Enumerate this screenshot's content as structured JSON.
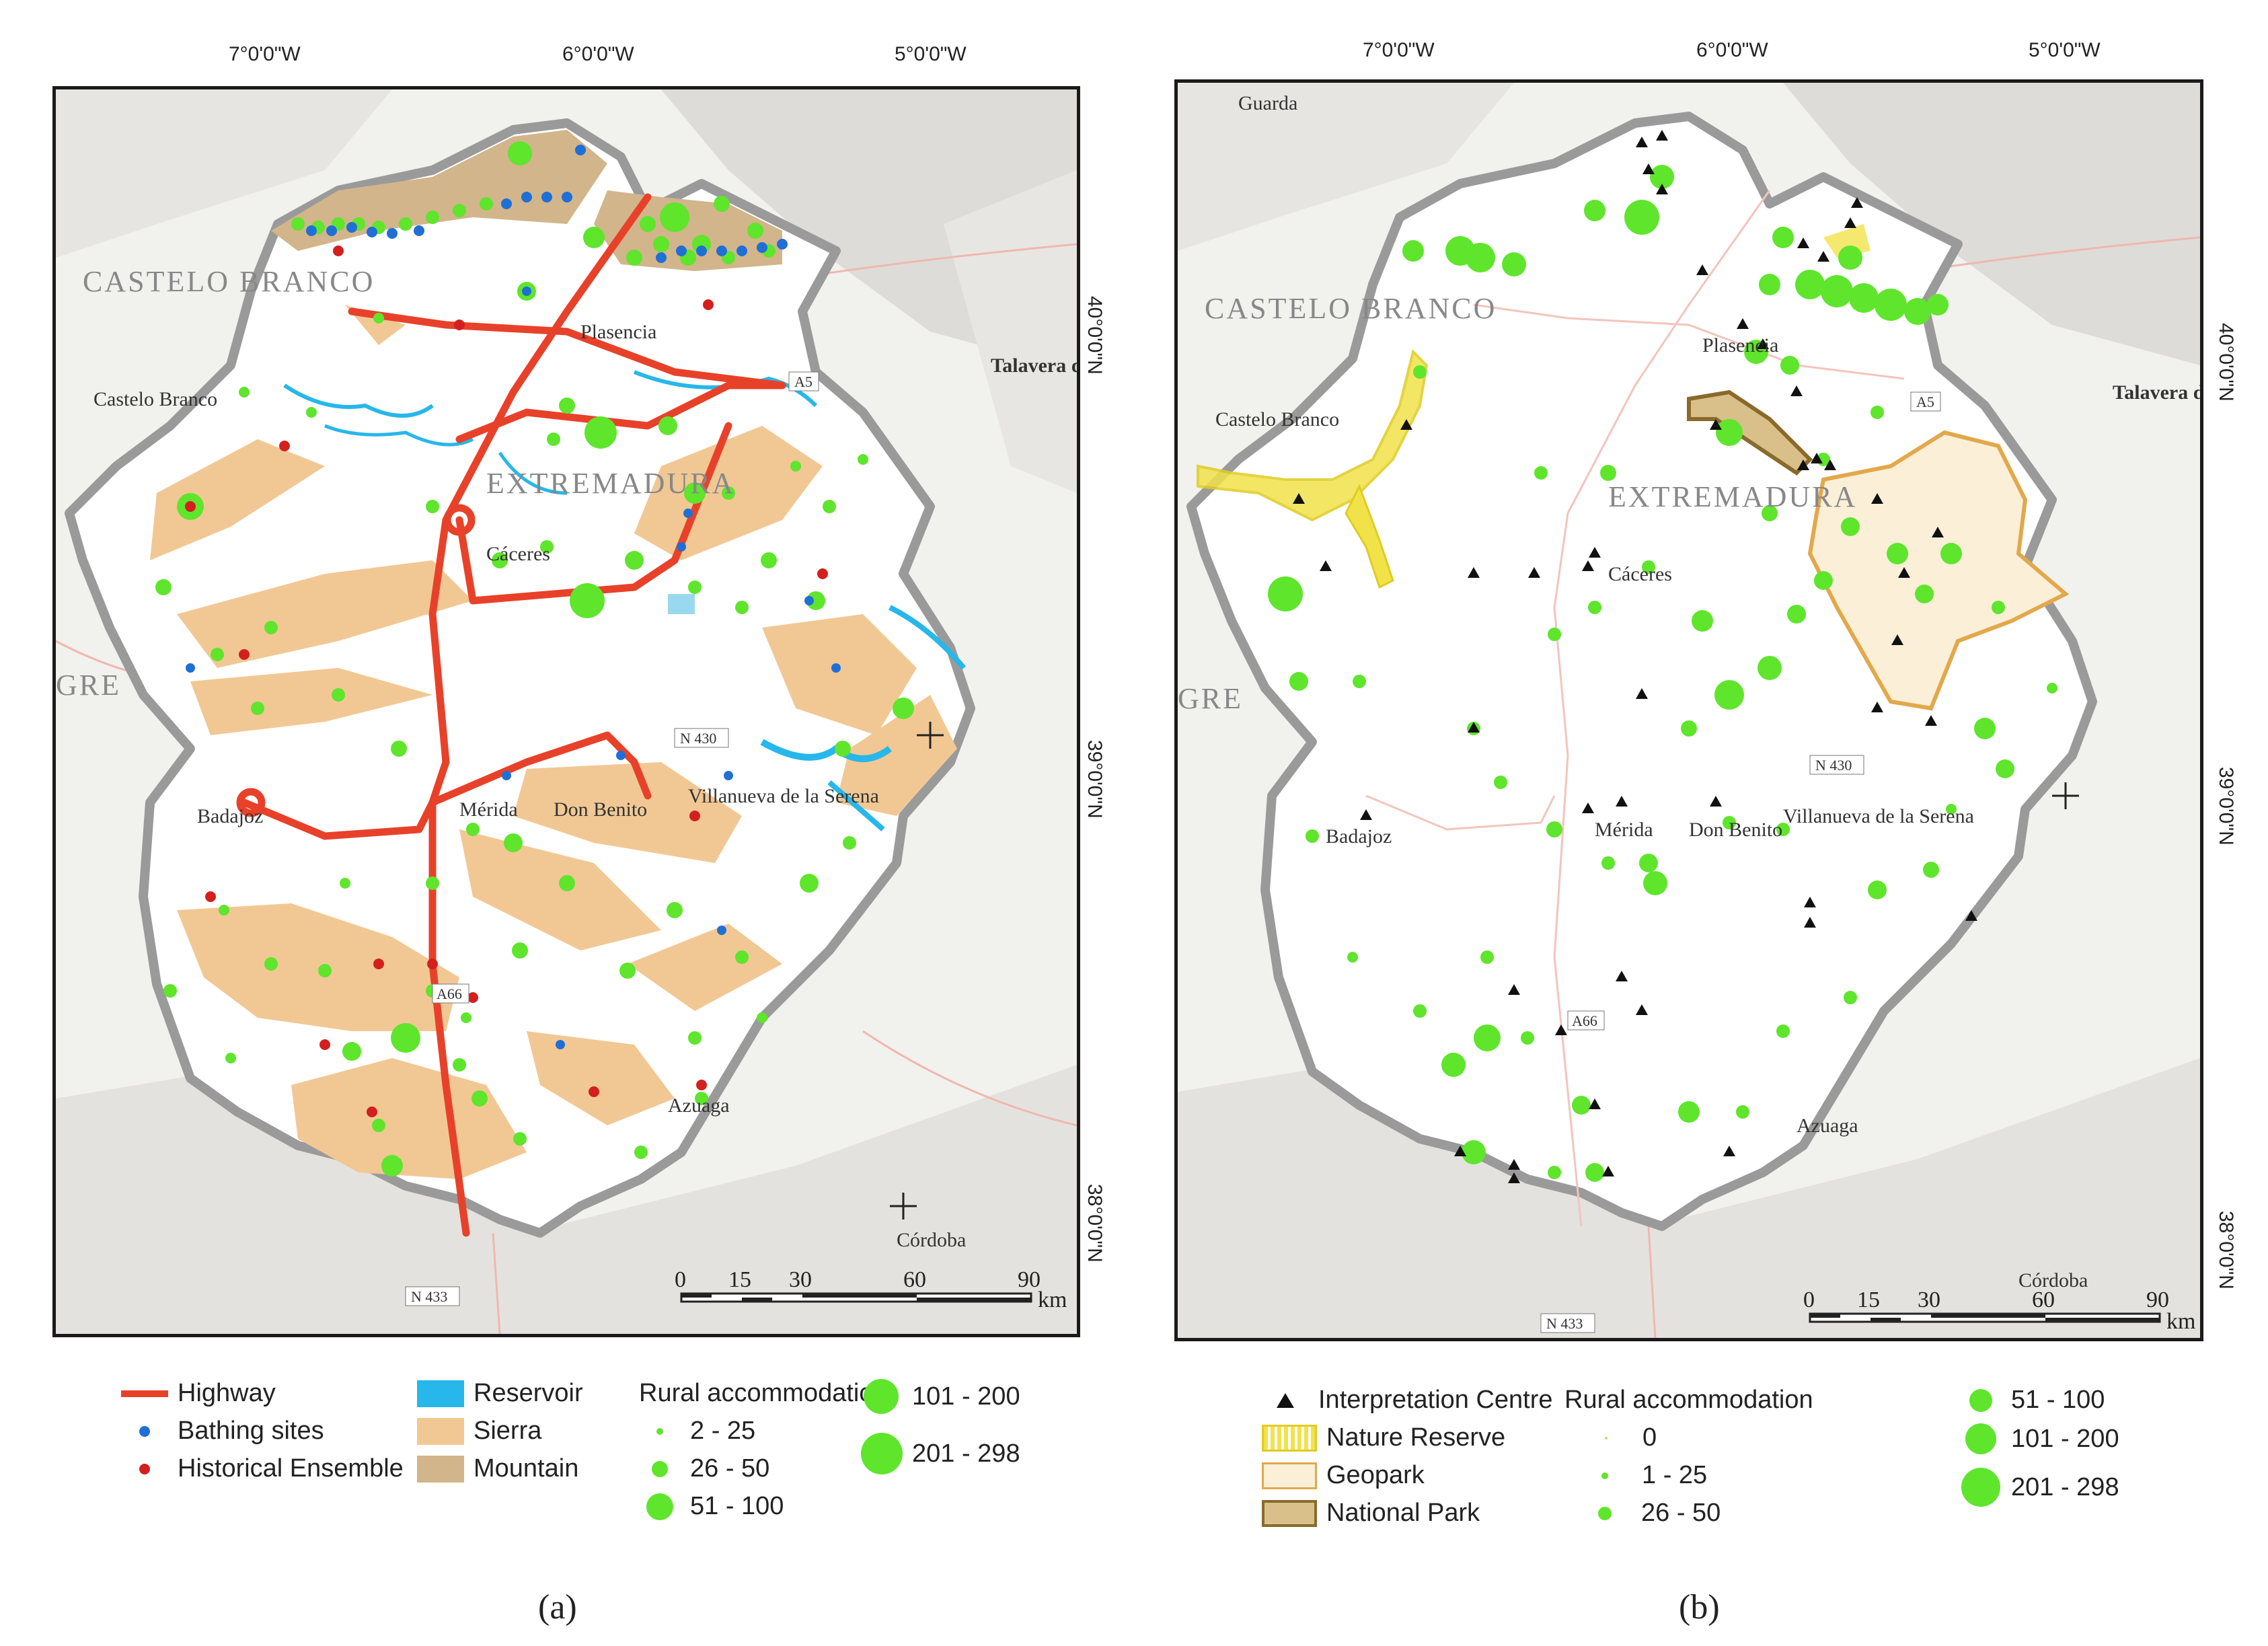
{
  "panel_a": {
    "top_coords": [
      "7°0'0\"W",
      "6°0'0\"W",
      "5°0'0\"W"
    ],
    "right_coords": [
      "40°0'0\"N",
      "39°0'0\"N",
      "38°0'0\"N"
    ],
    "place_labels": {
      "castelo_branco_region": "CASTELO BRANCO",
      "castelo_branco": "Castelo Branco",
      "plasencia": "Plasencia",
      "talavera": "Talavera de la Reina",
      "extremadura": "EXTREMADURA",
      "caceres": "Cáceres",
      "gre": "GRE",
      "merida": "Mérida",
      "don_benito": "Don Benito",
      "villanueva": "Villanueva de la Serena",
      "badajoz": "Badajoz",
      "azuaga": "Azuaga",
      "cordoba": "Córdoba",
      "a5": "A5",
      "n430": "N 430",
      "a66": "A66",
      "n433": "N 433"
    },
    "scale": {
      "ticks": [
        "0",
        "15",
        "30",
        "60",
        "90"
      ],
      "unit": "km"
    },
    "legend": {
      "highway": "Highway",
      "bathing": "Bathing sites",
      "historical": "Historical Ensemble",
      "reservoir": "Reservoir",
      "sierra": "Sierra",
      "mountain": "Mountain",
      "rural_title": "Rural accommodation",
      "r1": "2 - 25",
      "r2": "26 - 50",
      "r3": "51 - 100",
      "r4": "101 - 200",
      "r5": "201 - 298"
    },
    "caption": "(a)"
  },
  "panel_b": {
    "top_coords": [
      "7°0'0\"W",
      "6°0'0\"W",
      "5°0'0\"W"
    ],
    "right_coords": [
      "40°0'0\"N",
      "39°0'0\"N",
      "38°0'0\"N"
    ],
    "place_labels": {
      "guarda": "Guarda",
      "castelo_branco_region": "CASTELO BRANCO",
      "castelo_branco": "Castelo Branco",
      "plasencia": "Plasencia",
      "talavera": "Talavera de la Reina",
      "extremadura": "EXTREMADURA",
      "caceres": "Cáceres",
      "gre": "GRE",
      "merida": "Mérida",
      "don_benito": "Don Benito",
      "villanueva": "Villanueva de la Serena",
      "badajoz": "Badajoz",
      "azuaga": "Azuaga",
      "cordoba": "Córdoba",
      "a5": "A5",
      "n430": "N 430",
      "a66": "A66",
      "n433": "N 433"
    },
    "scale": {
      "ticks": [
        "0",
        "15",
        "30",
        "60",
        "90"
      ],
      "unit": "km"
    },
    "legend": {
      "interp": "Interpretation Centre",
      "nature": "Nature Reserve",
      "geopark": "Geopark",
      "national": "National Park",
      "rural_title": "Rural accommodation",
      "r0": "0",
      "r1": "1 - 25",
      "r2": "26 - 50",
      "r3": "51 - 100",
      "r4": "101 - 200",
      "r5": "201 - 298"
    },
    "caption": "(b)"
  },
  "colors": {
    "highway": "#e8412a",
    "bathing": "#1f6fd6",
    "historical": "#d41f1f",
    "reservoir": "#27b7ea",
    "sierra": "#f1c894",
    "mountain": "#d2b58a",
    "accommodation": "#5ee52c",
    "nature_reserve": "#f2e24a",
    "geopark": "#e2a84a",
    "national_park": "#8a6a2a"
  }
}
